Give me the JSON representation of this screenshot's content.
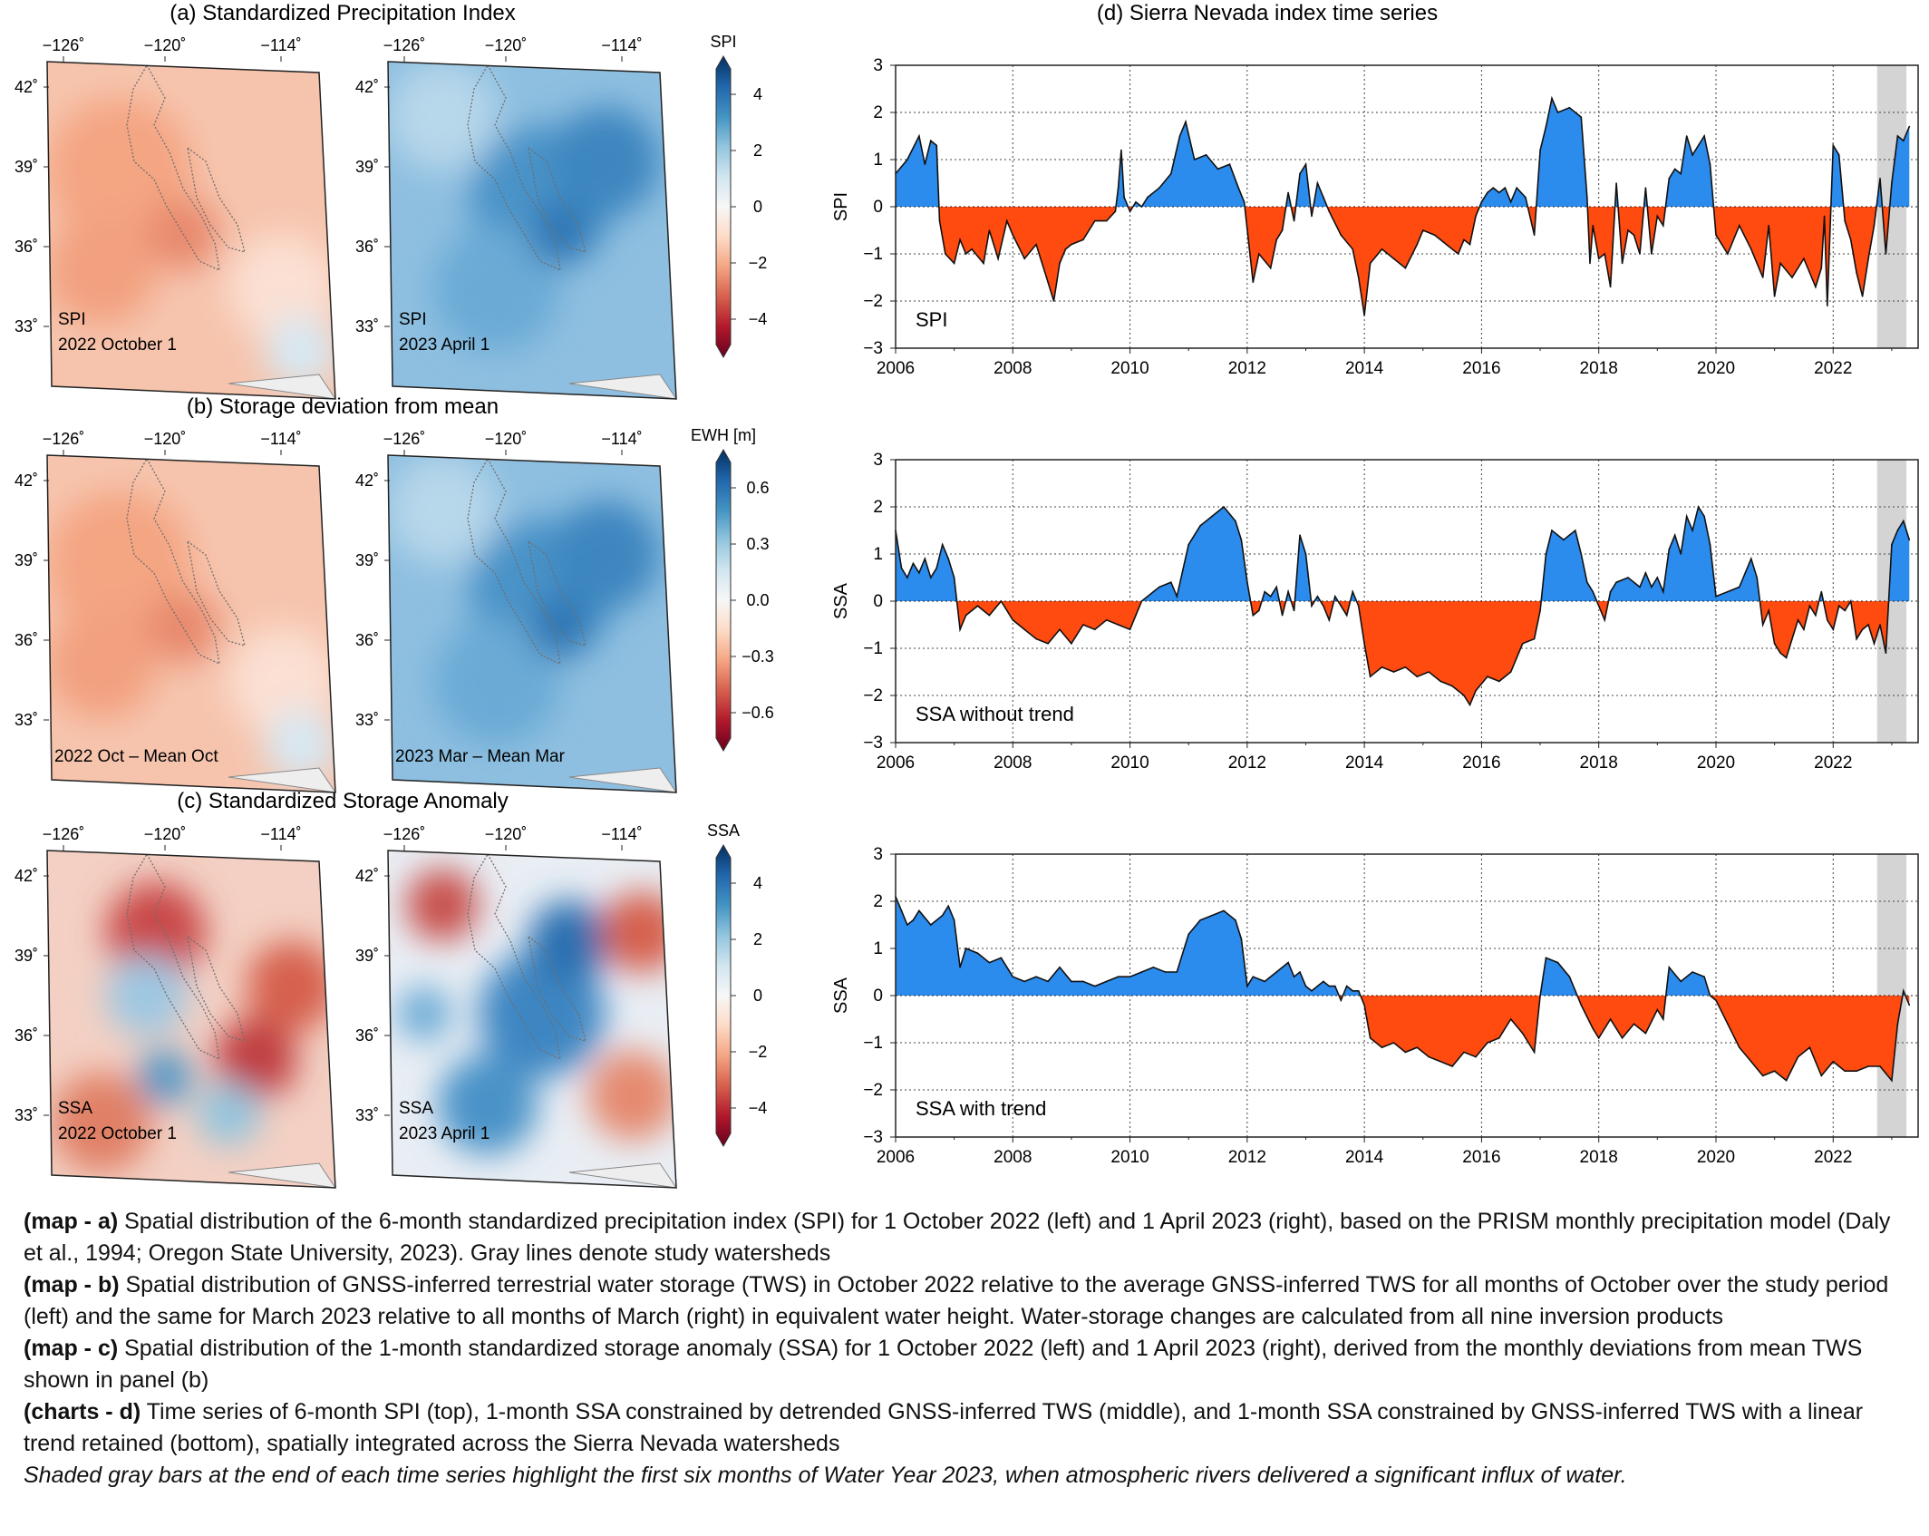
{
  "panels": {
    "a": {
      "title": "(a) Standardized Precipitation Index",
      "colorbar": {
        "label": "SPI",
        "ticks": [
          "4",
          "2",
          "0",
          "−2",
          "−4"
        ]
      },
      "maps": [
        {
          "label1": "SPI",
          "label2": "2022 October 1",
          "state": "dry"
        },
        {
          "label1": "SPI",
          "label2": "2023 April 1",
          "state": "wet"
        }
      ]
    },
    "b": {
      "title": "(b) Storage deviation from mean",
      "colorbar": {
        "label": "EWH [m]",
        "ticks": [
          "0.6",
          "0.3",
          "0.0",
          "−0.3",
          "−0.6"
        ]
      },
      "maps": [
        {
          "label1": "2022 Oct – Mean Oct",
          "label2": "",
          "state": "dry"
        },
        {
          "label1": "2023 Mar – Mean Mar",
          "label2": "",
          "state": "wet"
        }
      ]
    },
    "c": {
      "title": "(c) Standardized Storage Anomaly",
      "colorbar": {
        "label": "SSA",
        "ticks": [
          "4",
          "2",
          "0",
          "−2",
          "−4"
        ]
      },
      "maps": [
        {
          "label1": "SSA",
          "label2": "2022 October 1",
          "state": "mixed-dry"
        },
        {
          "label1": "SSA",
          "label2": "2023 April 1",
          "state": "mixed-wet"
        }
      ]
    },
    "d": {
      "title": "(d) Sierra Nevada index time series"
    }
  },
  "map_axes": {
    "lon_ticks": [
      "−126˚",
      "−120˚",
      "−114˚"
    ],
    "lat_ticks": [
      "42˚",
      "39˚",
      "36˚",
      "33˚"
    ]
  },
  "colors": {
    "positive": "#2b8cee",
    "negative": "#ff4a10",
    "wy2023_shade": "#d4d4d4",
    "colormap": [
      "#67001f",
      "#b2182b",
      "#d6604d",
      "#f4a582",
      "#fddbc7",
      "#f7f7f7",
      "#d1e5f0",
      "#92c5de",
      "#4393c3",
      "#2166ac",
      "#053061"
    ]
  },
  "chart_data": [
    {
      "type": "area",
      "ylabel": "SPI",
      "inner_label": "SPI",
      "xlim": [
        2006,
        2023.45
      ],
      "ylim": [
        -3,
        3
      ],
      "xticks": [
        2006,
        2008,
        2010,
        2012,
        2014,
        2016,
        2018,
        2020,
        2022
      ],
      "yticks": [
        3,
        2,
        1,
        0,
        -1,
        -2,
        -3
      ],
      "grid": "dotted",
      "shaded_period": [
        2022.75,
        2023.25
      ],
      "fill_above": "blue",
      "fill_below": "red",
      "series": [
        {
          "x": [
            2006.0,
            2006.2,
            2006.4,
            2006.5,
            2006.6,
            2006.7,
            2006.75,
            2006.85,
            2007.0,
            2007.1,
            2007.2,
            2007.3,
            2007.5,
            2007.6,
            2007.75,
            2007.9,
            2008.0,
            2008.2,
            2008.4,
            2008.6,
            2008.7,
            2008.8,
            2008.9,
            2009.0,
            2009.2,
            2009.4,
            2009.6,
            2009.75,
            2009.8,
            2009.85,
            2009.9,
            2010.0,
            2010.1,
            2010.2,
            2010.3,
            2010.5,
            2010.7,
            2010.85,
            2010.95,
            2011.1,
            2011.3,
            2011.5,
            2011.7,
            2011.85,
            2011.95,
            2012.1,
            2012.2,
            2012.4,
            2012.5,
            2012.6,
            2012.7,
            2012.8,
            2012.9,
            2013.0,
            2013.1,
            2013.2,
            2013.3,
            2013.4,
            2013.6,
            2013.8,
            2013.9,
            2014.0,
            2014.1,
            2014.3,
            2014.5,
            2014.7,
            2014.9,
            2015.0,
            2015.2,
            2015.4,
            2015.6,
            2015.7,
            2015.8,
            2015.9,
            2016.0,
            2016.1,
            2016.2,
            2016.3,
            2016.4,
            2016.5,
            2016.6,
            2016.75,
            2016.9,
            2017.0,
            2017.1,
            2017.2,
            2017.3,
            2017.5,
            2017.7,
            2017.8,
            2017.85,
            2017.9,
            2018.0,
            2018.1,
            2018.2,
            2018.3,
            2018.4,
            2018.5,
            2018.6,
            2018.7,
            2018.8,
            2018.9,
            2019.0,
            2019.1,
            2019.2,
            2019.3,
            2019.4,
            2019.5,
            2019.6,
            2019.7,
            2019.8,
            2019.9,
            2020.0,
            2020.2,
            2020.4,
            2020.6,
            2020.8,
            2020.9,
            2021.0,
            2021.1,
            2021.3,
            2021.5,
            2021.7,
            2021.8,
            2021.85,
            2021.9,
            2022.0,
            2022.1,
            2022.2,
            2022.3,
            2022.4,
            2022.5,
            2022.6,
            2022.7,
            2022.8,
            2022.9,
            2023.0,
            2023.1,
            2023.2,
            2023.3
          ],
          "y": [
            0.7,
            1.0,
            1.5,
            0.9,
            1.4,
            1.3,
            -0.3,
            -1.0,
            -1.2,
            -0.7,
            -1.0,
            -0.9,
            -1.2,
            -0.5,
            -1.1,
            -0.3,
            -0.6,
            -1.1,
            -0.8,
            -1.6,
            -2.0,
            -1.2,
            -0.9,
            -0.8,
            -0.7,
            -0.3,
            -0.3,
            -0.1,
            0.4,
            1.2,
            0.2,
            -0.1,
            0.1,
            0.0,
            0.2,
            0.4,
            0.7,
            1.5,
            1.8,
            1.0,
            1.1,
            0.8,
            0.9,
            0.4,
            0.1,
            -1.6,
            -1.0,
            -1.3,
            -0.7,
            -0.5,
            0.3,
            -0.3,
            0.7,
            0.9,
            -0.2,
            0.5,
            0.2,
            -0.1,
            -0.6,
            -0.9,
            -1.5,
            -2.3,
            -1.2,
            -0.9,
            -1.1,
            -1.3,
            -0.8,
            -0.5,
            -0.6,
            -0.8,
            -1.0,
            -0.7,
            -0.8,
            -0.2,
            0.1,
            0.3,
            0.4,
            0.3,
            0.4,
            0.1,
            0.4,
            0.2,
            -0.6,
            1.2,
            1.7,
            2.3,
            2.0,
            2.1,
            1.9,
            0.2,
            -1.2,
            -0.4,
            -1.1,
            -1.0,
            -1.7,
            0.5,
            -1.2,
            -0.5,
            -0.6,
            -1.0,
            0.4,
            -1.0,
            -0.2,
            -0.4,
            0.6,
            0.8,
            0.7,
            1.5,
            1.1,
            1.3,
            1.5,
            0.9,
            -0.6,
            -1.0,
            -0.4,
            -0.9,
            -1.5,
            -0.4,
            -1.9,
            -1.2,
            -1.5,
            -1.1,
            -1.7,
            -1.3,
            -0.2,
            -2.1,
            1.3,
            1.1,
            -0.3,
            -0.7,
            -1.4,
            -1.9,
            -1.1,
            -0.4,
            0.6,
            -1.0,
            0.5,
            1.5,
            1.4,
            1.7
          ]
        }
      ]
    },
    {
      "type": "area",
      "ylabel": "SSA",
      "inner_label": "SSA without trend",
      "xlim": [
        2006,
        2023.45
      ],
      "ylim": [
        -3,
        3
      ],
      "xticks": [
        2006,
        2008,
        2010,
        2012,
        2014,
        2016,
        2018,
        2020,
        2022
      ],
      "yticks": [
        3,
        2,
        1,
        0,
        -1,
        -2,
        -3
      ],
      "grid": "dotted",
      "shaded_period": [
        2022.75,
        2023.25
      ],
      "fill_above": "blue",
      "fill_below": "red",
      "series": [
        {
          "x": [
            2006.0,
            2006.1,
            2006.2,
            2006.3,
            2006.4,
            2006.5,
            2006.6,
            2006.7,
            2006.8,
            2006.9,
            2007.0,
            2007.1,
            2007.2,
            2007.4,
            2007.6,
            2007.8,
            2008.0,
            2008.2,
            2008.4,
            2008.6,
            2008.8,
            2009.0,
            2009.2,
            2009.4,
            2009.6,
            2009.8,
            2010.0,
            2010.1,
            2010.2,
            2010.3,
            2010.5,
            2010.7,
            2010.8,
            2011.0,
            2011.2,
            2011.4,
            2011.6,
            2011.8,
            2011.9,
            2012.0,
            2012.1,
            2012.2,
            2012.3,
            2012.4,
            2012.5,
            2012.6,
            2012.7,
            2012.8,
            2012.9,
            2013.0,
            2013.1,
            2013.2,
            2013.3,
            2013.4,
            2013.5,
            2013.6,
            2013.7,
            2013.8,
            2013.9,
            2014.0,
            2014.1,
            2014.3,
            2014.5,
            2014.7,
            2014.9,
            2015.1,
            2015.3,
            2015.5,
            2015.7,
            2015.8,
            2015.9,
            2016.1,
            2016.3,
            2016.5,
            2016.7,
            2016.9,
            2017.0,
            2017.1,
            2017.2,
            2017.4,
            2017.6,
            2017.7,
            2017.8,
            2017.9,
            2018.0,
            2018.1,
            2018.2,
            2018.3,
            2018.5,
            2018.7,
            2018.8,
            2018.9,
            2019.0,
            2019.1,
            2019.2,
            2019.3,
            2019.4,
            2019.5,
            2019.6,
            2019.7,
            2019.8,
            2019.9,
            2020.0,
            2020.2,
            2020.4,
            2020.5,
            2020.6,
            2020.7,
            2020.8,
            2020.9,
            2021.0,
            2021.1,
            2021.2,
            2021.3,
            2021.4,
            2021.5,
            2021.6,
            2021.7,
            2021.8,
            2021.9,
            2022.0,
            2022.1,
            2022.2,
            2022.3,
            2022.4,
            2022.5,
            2022.6,
            2022.7,
            2022.8,
            2022.9,
            2023.0,
            2023.1,
            2023.2,
            2023.3
          ],
          "y": [
            1.5,
            0.7,
            0.5,
            0.8,
            0.6,
            0.9,
            0.5,
            0.7,
            1.2,
            0.9,
            0.5,
            -0.6,
            -0.3,
            -0.1,
            -0.3,
            0.0,
            -0.4,
            -0.6,
            -0.8,
            -0.9,
            -0.6,
            -0.9,
            -0.5,
            -0.6,
            -0.4,
            -0.5,
            -0.6,
            -0.3,
            0.0,
            0.1,
            0.3,
            0.4,
            0.1,
            1.2,
            1.6,
            1.8,
            2.0,
            1.7,
            1.3,
            0.4,
            -0.3,
            -0.2,
            0.2,
            0.1,
            0.3,
            -0.3,
            0.2,
            -0.2,
            1.4,
            1.0,
            -0.1,
            0.1,
            -0.1,
            -0.4,
            0.1,
            -0.1,
            -0.3,
            0.2,
            -0.1,
            -0.9,
            -1.6,
            -1.4,
            -1.5,
            -1.4,
            -1.6,
            -1.5,
            -1.7,
            -1.8,
            -2.0,
            -2.2,
            -1.9,
            -1.6,
            -1.7,
            -1.5,
            -0.9,
            -0.8,
            -0.2,
            1.0,
            1.5,
            1.3,
            1.5,
            1.0,
            0.4,
            0.2,
            -0.1,
            -0.4,
            0.2,
            0.4,
            0.5,
            0.3,
            0.6,
            0.3,
            0.5,
            0.2,
            1.1,
            1.4,
            1.0,
            1.8,
            1.5,
            2.0,
            1.8,
            1.2,
            0.1,
            0.2,
            0.3,
            0.6,
            0.9,
            0.5,
            -0.5,
            -0.2,
            -0.9,
            -1.1,
            -1.2,
            -0.8,
            -0.4,
            -0.6,
            -0.1,
            -0.3,
            0.2,
            -0.4,
            -0.6,
            -0.1,
            -0.2,
            0.0,
            -0.8,
            -0.6,
            -0.5,
            -0.9,
            -0.5,
            -1.1,
            1.2,
            1.5,
            1.7,
            1.3
          ]
        }
      ]
    },
    {
      "type": "area",
      "ylabel": "SSA",
      "inner_label": "SSA with trend",
      "xlim": [
        2006,
        2023.45
      ],
      "ylim": [
        -3,
        3
      ],
      "xticks": [
        2006,
        2008,
        2010,
        2012,
        2014,
        2016,
        2018,
        2020,
        2022
      ],
      "yticks": [
        3,
        2,
        1,
        0,
        -1,
        -2,
        -3
      ],
      "grid": "dotted",
      "shaded_period": [
        2022.75,
        2023.25
      ],
      "fill_above": "blue",
      "fill_below": "red",
      "series": [
        {
          "x": [
            2006.0,
            2006.1,
            2006.2,
            2006.3,
            2006.4,
            2006.6,
            2006.8,
            2006.9,
            2007.0,
            2007.1,
            2007.2,
            2007.4,
            2007.6,
            2007.8,
            2008.0,
            2008.2,
            2008.4,
            2008.6,
            2008.8,
            2009.0,
            2009.2,
            2009.4,
            2009.6,
            2009.8,
            2010.0,
            2010.2,
            2010.4,
            2010.6,
            2010.8,
            2011.0,
            2011.2,
            2011.4,
            2011.6,
            2011.8,
            2011.9,
            2012.0,
            2012.1,
            2012.3,
            2012.5,
            2012.7,
            2012.8,
            2012.9,
            2013.0,
            2013.1,
            2013.3,
            2013.4,
            2013.5,
            2013.6,
            2013.7,
            2013.8,
            2013.9,
            2014.0,
            2014.1,
            2014.3,
            2014.5,
            2014.7,
            2014.9,
            2015.1,
            2015.3,
            2015.5,
            2015.7,
            2015.9,
            2016.1,
            2016.3,
            2016.5,
            2016.7,
            2016.9,
            2017.0,
            2017.1,
            2017.3,
            2017.5,
            2017.7,
            2017.9,
            2018.0,
            2018.2,
            2018.4,
            2018.6,
            2018.8,
            2019.0,
            2019.1,
            2019.2,
            2019.4,
            2019.6,
            2019.8,
            2019.9,
            2020.0,
            2020.2,
            2020.4,
            2020.6,
            2020.8,
            2021.0,
            2021.2,
            2021.4,
            2021.6,
            2021.8,
            2022.0,
            2022.2,
            2022.4,
            2022.6,
            2022.8,
            2023.0,
            2023.1,
            2023.2,
            2023.3
          ],
          "y": [
            2.1,
            1.8,
            1.5,
            1.6,
            1.8,
            1.5,
            1.7,
            1.9,
            1.6,
            0.6,
            1.0,
            0.9,
            0.7,
            0.8,
            0.4,
            0.3,
            0.4,
            0.3,
            0.6,
            0.3,
            0.3,
            0.2,
            0.3,
            0.4,
            0.4,
            0.5,
            0.6,
            0.5,
            0.5,
            1.3,
            1.6,
            1.7,
            1.8,
            1.6,
            1.2,
            0.2,
            0.4,
            0.3,
            0.5,
            0.7,
            0.4,
            0.5,
            0.2,
            0.1,
            0.3,
            0.2,
            0.2,
            -0.1,
            0.2,
            0.1,
            0.1,
            -0.2,
            -0.9,
            -1.1,
            -1.0,
            -1.2,
            -1.1,
            -1.3,
            -1.4,
            -1.5,
            -1.2,
            -1.3,
            -1.0,
            -0.9,
            -0.5,
            -0.8,
            -1.2,
            0.0,
            0.8,
            0.7,
            0.4,
            -0.2,
            -0.7,
            -0.9,
            -0.5,
            -0.9,
            -0.6,
            -0.8,
            -0.3,
            -0.5,
            0.6,
            0.3,
            0.5,
            0.4,
            0.0,
            -0.1,
            -0.6,
            -1.1,
            -1.4,
            -1.7,
            -1.6,
            -1.8,
            -1.3,
            -1.1,
            -1.7,
            -1.4,
            -1.6,
            -1.6,
            -1.5,
            -1.5,
            -1.8,
            -0.6,
            0.1,
            -0.2
          ]
        }
      ]
    }
  ],
  "captions": [
    {
      "label": "(map - a)",
      "text": " Spatial distribution of the 6-month standardized precipitation index (SPI) for 1 October 2022 (left) and 1 April 2023 (right), based on the PRISM monthly precipitation model (Daly et al., 1994; Oregon State University, 2023). Gray lines denote study watersheds"
    },
    {
      "label": "(map - b)",
      "text": " Spatial distribution of GNSS-inferred terrestrial water storage (TWS) in October 2022 relative to the average GNSS-inferred TWS for all months of October over the study period (left) and the same for March 2023 relative to all months of March (right) in equivalent water height. Water-storage changes are calculated from all nine inversion products"
    },
    {
      "label": "(map - c)",
      "text": " Spatial distribution of the 1-month standardized storage anomaly (SSA) for 1 October 2022 (left) and 1 April 2023 (right), derived from the monthly deviations from mean TWS shown in panel (b)"
    },
    {
      "label": "(charts - d)",
      "text": " Time series of 6-month SPI (top), 1-month SSA constrained by detrended GNSS-inferred TWS (middle), and 1-month SSA constrained by GNSS-inferred TWS with a linear trend retained (bottom), spatially integrated across the Sierra Nevada watersheds"
    }
  ],
  "note": "Shaded gray bars at the end of each time series highlight the first six months of Water Year 2023, when atmospheric rivers delivered a significant influx of water."
}
